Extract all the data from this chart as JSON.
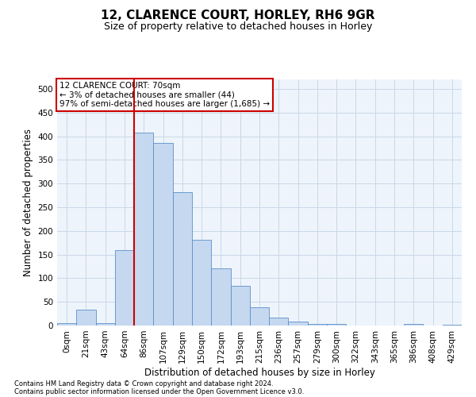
{
  "title": "12, CLARENCE COURT, HORLEY, RH6 9GR",
  "subtitle": "Size of property relative to detached houses in Horley",
  "xlabel": "Distribution of detached houses by size in Horley",
  "ylabel": "Number of detached properties",
  "categories": [
    "0sqm",
    "21sqm",
    "43sqm",
    "64sqm",
    "86sqm",
    "107sqm",
    "129sqm",
    "150sqm",
    "172sqm",
    "193sqm",
    "215sqm",
    "236sqm",
    "257sqm",
    "279sqm",
    "300sqm",
    "322sqm",
    "343sqm",
    "365sqm",
    "386sqm",
    "408sqm",
    "429sqm"
  ],
  "bar_values": [
    5,
    33,
    5,
    160,
    407,
    385,
    282,
    182,
    120,
    84,
    39,
    17,
    9,
    3,
    3,
    0,
    0,
    0,
    3,
    0,
    2
  ],
  "bar_color": "#c5d8f0",
  "bar_edge_color": "#5b8fc9",
  "grid_color": "#c8d8e8",
  "background_color": "#eef4fb",
  "vline_x": 3.5,
  "vline_color": "#cc0000",
  "annotation_text": "12 CLARENCE COURT: 70sqm\n← 3% of detached houses are smaller (44)\n97% of semi-detached houses are larger (1,685) →",
  "annotation_box_color": "#ffffff",
  "annotation_box_edge": "#cc0000",
  "footer_line1": "Contains HM Land Registry data © Crown copyright and database right 2024.",
  "footer_line2": "Contains public sector information licensed under the Open Government Licence v3.0.",
  "ylim": [
    0,
    520
  ],
  "yticks": [
    0,
    50,
    100,
    150,
    200,
    250,
    300,
    350,
    400,
    450,
    500
  ],
  "title_fontsize": 11,
  "subtitle_fontsize": 9,
  "xlabel_fontsize": 8.5,
  "ylabel_fontsize": 8.5,
  "tick_fontsize": 7.5,
  "annot_fontsize": 7.5,
  "footer_fontsize": 6
}
